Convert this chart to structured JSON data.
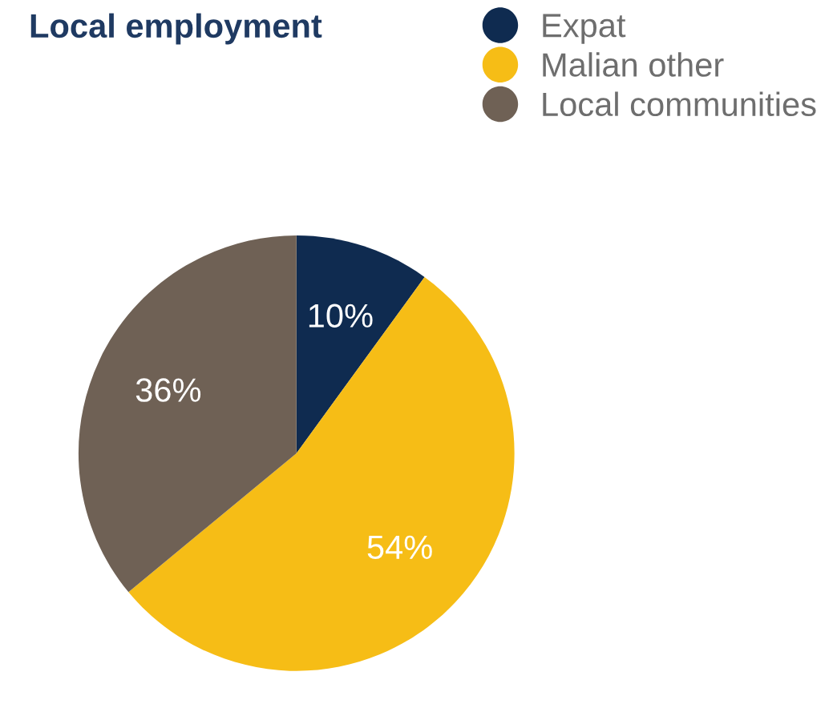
{
  "chart_data": {
    "type": "pie",
    "title": "Local employment",
    "categories": [
      "Expat",
      "Malian other",
      "Local communities"
    ],
    "values": [
      10,
      54,
      36
    ],
    "colors": [
      "#0f2b50",
      "#f6bd16",
      "#6f6155"
    ],
    "value_labels": [
      "10%",
      "54%",
      "36%"
    ],
    "legend": "top right"
  }
}
